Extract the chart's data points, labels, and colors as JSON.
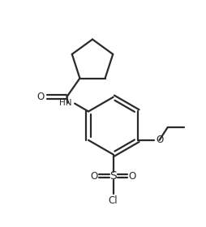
{
  "background_color": "#ffffff",
  "line_color": "#2a2a2a",
  "line_width": 1.6,
  "figsize": [
    2.54,
    2.8
  ],
  "dpi": 100,
  "xlim": [
    0,
    10
  ],
  "ylim": [
    0,
    11
  ]
}
